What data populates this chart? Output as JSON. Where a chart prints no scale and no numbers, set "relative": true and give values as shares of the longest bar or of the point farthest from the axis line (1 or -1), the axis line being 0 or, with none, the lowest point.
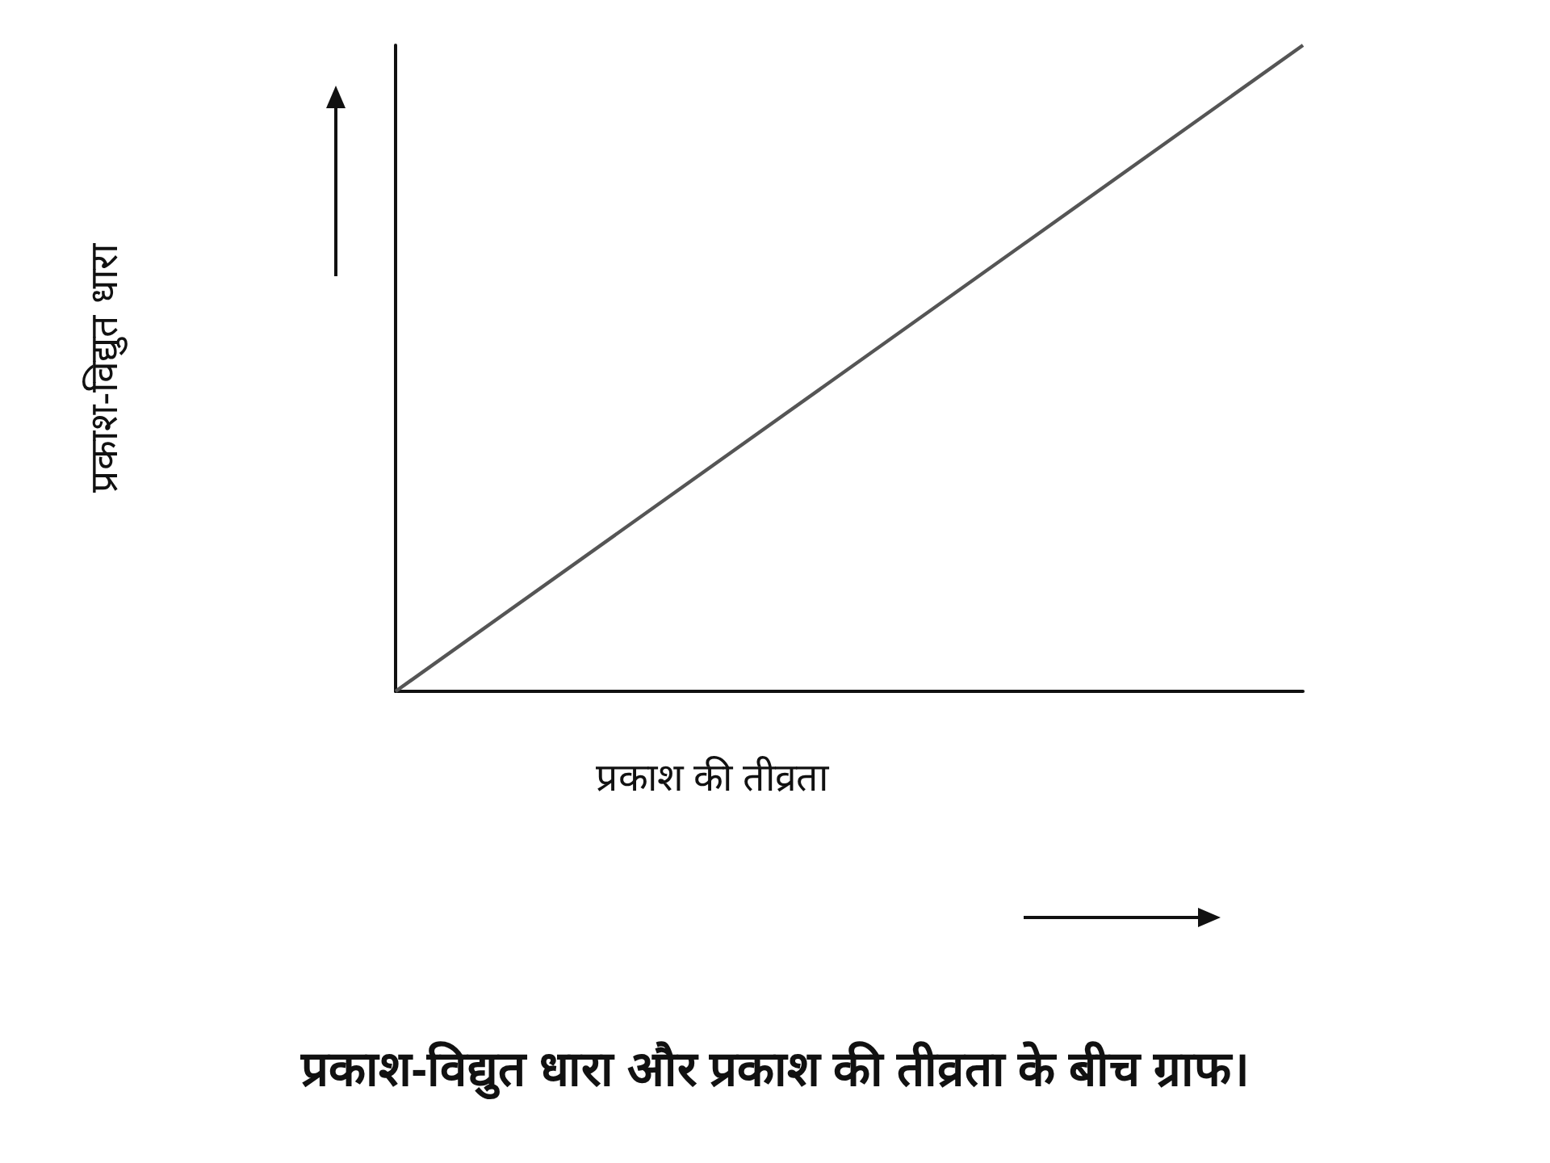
{
  "chart_data": {
    "type": "line",
    "relative": true,
    "xlabel": "प्रकाश की तीव्रता",
    "ylabel": "प्रकाश-विद्युत धारा",
    "categories": [
      null,
      null
    ],
    "series": [
      {
        "color": "#555555",
        "values": [
          0,
          1
        ]
      }
    ],
    "grid": false,
    "annotations": [
      "प्रकाश-विद्युत धारा और प्रकाश की तीव्रता के बीच ग्राफ।"
    ]
  }
}
